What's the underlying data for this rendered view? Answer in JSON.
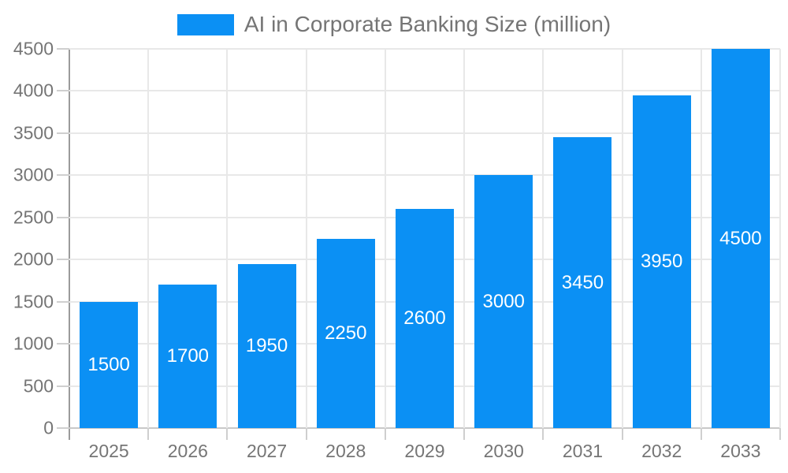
{
  "chart_data": {
    "type": "bar",
    "title": "AI in Corporate Banking Size (million)",
    "legend": {
      "label": "AI in Corporate Banking Size (million)",
      "position": "top"
    },
    "categories": [
      "2025",
      "2026",
      "2027",
      "2028",
      "2029",
      "2030",
      "2031",
      "2032",
      "2033"
    ],
    "series": [
      {
        "name": "AI in Corporate Banking Size (million)",
        "values": [
          1500,
          1700,
          1950,
          2250,
          2600,
          3000,
          3450,
          3950,
          4500
        ],
        "data_labels": [
          "1500",
          "1700",
          "1950",
          "2250",
          "2600",
          "3000",
          "3450",
          "3950",
          "4500"
        ]
      }
    ],
    "xlabel": "",
    "ylabel": "",
    "ylim": [
      0,
      4500
    ],
    "yticks": [
      0,
      500,
      1000,
      1500,
      2000,
      2500,
      3000,
      3500,
      4000,
      4500
    ],
    "grid": true
  },
  "colors": {
    "bar": "#0b90f4",
    "bar_label_text": "#ffffff",
    "axis_text": "#757575",
    "title_text": "#757575",
    "axis_line": "#9b9b9b",
    "grid_line": "#e8e8e8",
    "tick_line": "#cfcfcf",
    "baseline": "#c9c9c9",
    "background": "#ffffff"
  }
}
